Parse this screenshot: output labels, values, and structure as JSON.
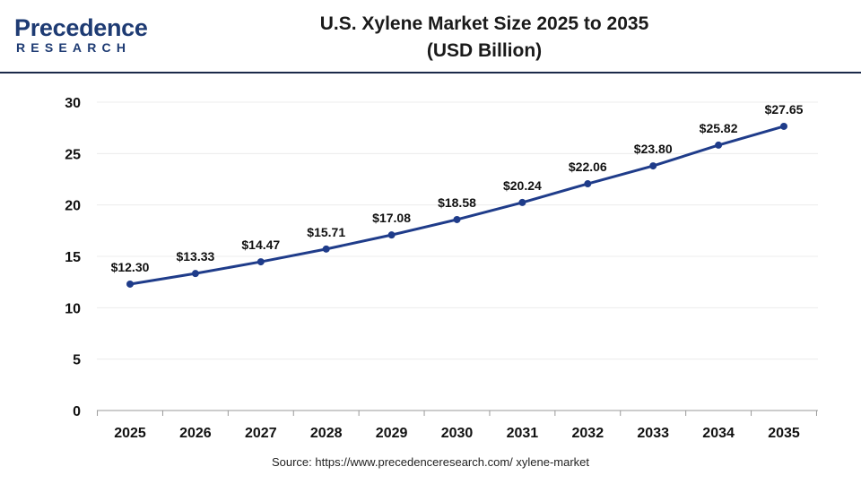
{
  "brand": {
    "name": "Precedence",
    "sub": "RESEARCH"
  },
  "colors": {
    "line": "#1f3c8a",
    "point": "#1f3c8a",
    "grid": "#ececec",
    "axis": "#999999",
    "brand": "#1e3b73"
  },
  "title": {
    "line1": "U.S. Xylene Market Size 2025 to 2035",
    "line2": "(USD Billion)"
  },
  "source": "Source: https://www.precedenceresearch.com/ xylene-market",
  "chart_data": {
    "type": "line",
    "title": "U.S. Xylene Market Size 2025 to 2035 (USD Billion)",
    "xlabel": "",
    "ylabel": "",
    "categories": [
      "2025",
      "2026",
      "2027",
      "2028",
      "2029",
      "2030",
      "2031",
      "2032",
      "2033",
      "2034",
      "2035"
    ],
    "series": [
      {
        "values": [
          12.3,
          13.33,
          14.47,
          15.71,
          17.08,
          18.58,
          20.24,
          22.06,
          23.8,
          25.82,
          27.65
        ],
        "labels": [
          "$12.30",
          "$13.33",
          "$14.47",
          "$15.71",
          "$17.08",
          "$18.58",
          "$20.24",
          "$22.06",
          "$23.80",
          "$25.82",
          "$27.65"
        ]
      }
    ],
    "ylim": [
      0,
      30
    ],
    "yticks": [
      0,
      5,
      10,
      15,
      20,
      25,
      30
    ],
    "grid": true,
    "legend": "none"
  }
}
